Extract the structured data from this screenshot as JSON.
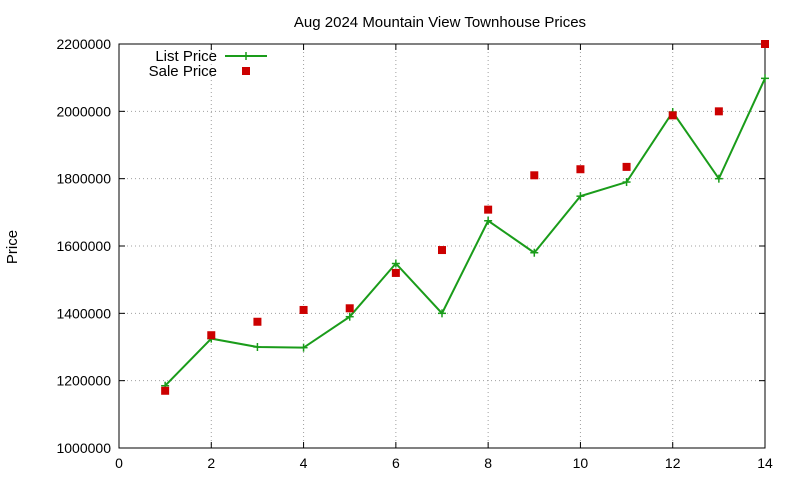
{
  "chart_data": {
    "type": "line",
    "title": "Aug 2024 Mountain View Townhouse Prices",
    "xlabel": "",
    "ylabel": "Price",
    "xlim": [
      0,
      14
    ],
    "ylim": [
      1000000,
      2200000
    ],
    "x_ticks": [
      0,
      2,
      4,
      6,
      8,
      10,
      12,
      14
    ],
    "y_ticks": [
      1000000,
      1200000,
      1400000,
      1600000,
      1800000,
      2000000,
      2200000
    ],
    "grid": true,
    "legend_position": "top-left",
    "series": [
      {
        "name": "List Price",
        "style": "line-with-plus-markers",
        "color": "#1a9c1a",
        "x": [
          1,
          2,
          3,
          4,
          5,
          6,
          7,
          8,
          9,
          10,
          11,
          12,
          13,
          14
        ],
        "y": [
          1185000,
          1325000,
          1300000,
          1298000,
          1390000,
          1548000,
          1400000,
          1675000,
          1580000,
          1748000,
          1790000,
          1998000,
          1800000,
          2098000
        ]
      },
      {
        "name": "Sale Price",
        "style": "square-markers",
        "color": "#cc0000",
        "x": [
          1,
          2,
          3,
          4,
          5,
          6,
          7,
          8,
          9,
          10,
          11,
          12,
          13,
          14
        ],
        "y": [
          1170000,
          1335000,
          1375000,
          1410000,
          1415000,
          1520000,
          1588000,
          1708000,
          1810000,
          1828000,
          1835000,
          1988000,
          2000000,
          2200000
        ]
      }
    ]
  }
}
